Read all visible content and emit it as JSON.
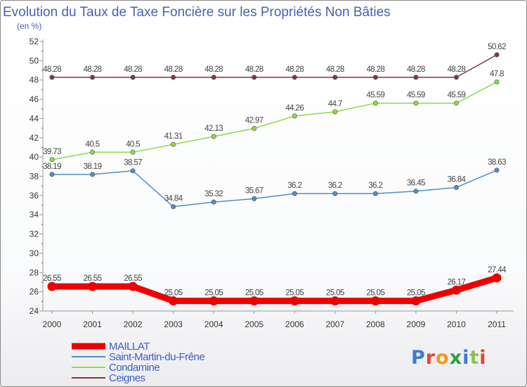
{
  "chart_data": {
    "type": "line",
    "title": "Evolution du Taux de Taxe Foncière sur les Propriétés Non Bâties",
    "ylabel": "(en %)",
    "xlabel": "",
    "ylim": [
      24,
      52
    ],
    "yticks": [
      24,
      26,
      28,
      30,
      32,
      34,
      36,
      38,
      40,
      42,
      44,
      46,
      48,
      50,
      52
    ],
    "categories": [
      "2000",
      "2001",
      "2002",
      "2003",
      "2004",
      "2005",
      "2006",
      "2007",
      "2008",
      "2009",
      "2010",
      "2011"
    ],
    "series": [
      {
        "name": "MAILLAT",
        "color": "#ee0000",
        "highlight": true,
        "values": [
          26.55,
          26.55,
          26.55,
          25.05,
          25.05,
          25.05,
          25.05,
          25.05,
          25.05,
          25.05,
          26.17,
          27.44
        ],
        "labels": [
          "26.55",
          "26.55",
          "26.55",
          "25.05",
          "25.05",
          "25.05",
          "25.05",
          "25.05",
          "25.05",
          "25.05",
          "26.17",
          "27.44"
        ]
      },
      {
        "name": "Saint-Martin-du-Frêne",
        "color": "#4f8fc9",
        "highlight": false,
        "values": [
          38.19,
          38.19,
          38.57,
          34.84,
          35.32,
          35.67,
          36.2,
          36.2,
          36.2,
          36.45,
          36.84,
          38.63
        ],
        "labels": [
          "38.19",
          "38.19",
          "38.57",
          "34.84",
          "35.32",
          "35.67",
          "36.2",
          "36.2",
          "36.2",
          "36.45",
          "36.84",
          "38.63"
        ]
      },
      {
        "name": "Condamine",
        "color": "#88dd44",
        "highlight": false,
        "values": [
          39.73,
          40.5,
          40.5,
          41.31,
          42.13,
          42.97,
          44.26,
          44.7,
          45.59,
          45.59,
          45.59,
          47.8
        ],
        "labels": [
          "39.73",
          "40.5",
          "40.5",
          "41.31",
          "42.13",
          "42.97",
          "44.26",
          "44.7",
          "45.59",
          "45.59",
          "45.59",
          "47.8"
        ]
      },
      {
        "name": "Ceignes",
        "color": "#7a3a3f",
        "highlight": false,
        "values": [
          48.28,
          48.28,
          48.28,
          48.28,
          48.28,
          48.28,
          48.28,
          48.28,
          48.28,
          48.28,
          48.28,
          50.62
        ],
        "labels": [
          "48.28",
          "48.28",
          "48.28",
          "48.28",
          "48.28",
          "48.28",
          "48.28",
          "48.28",
          "48.28",
          "48.28",
          "48.28",
          "50.62"
        ]
      }
    ],
    "legend_position": "bottom-left"
  },
  "logo": {
    "text": "Proxiti"
  }
}
